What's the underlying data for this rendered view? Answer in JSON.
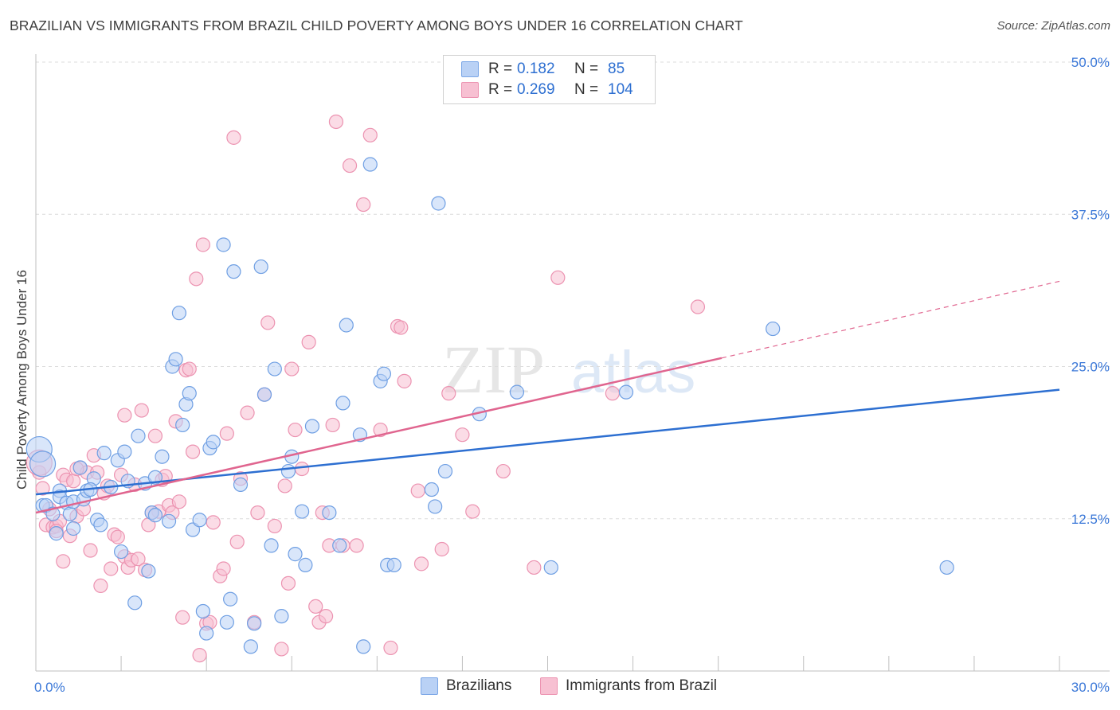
{
  "title": "BRAZILIAN VS IMMIGRANTS FROM BRAZIL CHILD POVERTY AMONG BOYS UNDER 16 CORRELATION CHART",
  "source": "Source: ZipAtlas.com",
  "watermark": {
    "zip": "ZIP",
    "atlas": "atlas"
  },
  "colors": {
    "blue": "#2d6fd1",
    "blue_fill": "#b9d1f5",
    "pink": "#e0658f",
    "pink_fill": "#f7c0d2",
    "grid": "#dcdcdc",
    "label_blue": "#3b78d8"
  },
  "legend_top": [
    {
      "r_label": "R =",
      "r_value": "0.182",
      "n_label": "N =",
      "n_value": "85"
    },
    {
      "r_label": "R =",
      "r_value": "0.269",
      "n_label": "N =",
      "n_value": "104"
    }
  ],
  "legend_bottom": [
    "Brazilians",
    "Immigrants from Brazil"
  ],
  "chart_data": {
    "type": "scatter",
    "title": "BRAZILIAN VS IMMIGRANTS FROM BRAZIL CHILD POVERTY AMONG BOYS UNDER 16 CORRELATION CHART",
    "xlabel": "",
    "ylabel": "Child Poverty Among Boys Under 16",
    "xlim": [
      0,
      30
    ],
    "ylim": [
      0,
      50
    ],
    "x_tick_labels": [
      "0.0%",
      "30.0%"
    ],
    "y_tick_labels": [
      "12.5%",
      "25.0%",
      "37.5%",
      "50.0%"
    ],
    "y_ticks": [
      12.5,
      25.0,
      37.5,
      50.0
    ],
    "grid": true,
    "legend_position": "top-center",
    "series": [
      {
        "name": "Brazilians",
        "r": 0.182,
        "n": 85,
        "trend": {
          "x": [
            0,
            30
          ],
          "y": [
            14.5,
            23.1
          ]
        },
        "points": [
          [
            0.2,
            13.6
          ],
          [
            0.3,
            13.6
          ],
          [
            0.5,
            12.9
          ],
          [
            0.6,
            11.3
          ],
          [
            0.7,
            14.8
          ],
          [
            0.7,
            14.3
          ],
          [
            0.9,
            13.8
          ],
          [
            1.0,
            12.9
          ],
          [
            1.1,
            11.7
          ],
          [
            1.1,
            13.9
          ],
          [
            1.3,
            16.7
          ],
          [
            1.4,
            14.1
          ],
          [
            1.5,
            14.8
          ],
          [
            1.7,
            15.8
          ],
          [
            1.8,
            12.4
          ],
          [
            1.9,
            12.0
          ],
          [
            2.0,
            17.9
          ],
          [
            2.2,
            15.1
          ],
          [
            2.4,
            17.3
          ],
          [
            2.5,
            9.8
          ],
          [
            2.6,
            18.0
          ],
          [
            2.7,
            15.6
          ],
          [
            2.9,
            5.6
          ],
          [
            3.0,
            19.3
          ],
          [
            3.2,
            15.4
          ],
          [
            3.3,
            8.2
          ],
          [
            3.4,
            13.0
          ],
          [
            3.5,
            15.9
          ],
          [
            3.5,
            12.8
          ],
          [
            3.7,
            17.6
          ],
          [
            3.9,
            12.3
          ],
          [
            4.0,
            25.0
          ],
          [
            4.1,
            25.6
          ],
          [
            4.2,
            29.4
          ],
          [
            4.3,
            20.2
          ],
          [
            4.4,
            21.9
          ],
          [
            4.5,
            22.8
          ],
          [
            4.6,
            11.6
          ],
          [
            4.8,
            12.4
          ],
          [
            4.9,
            4.9
          ],
          [
            5.0,
            3.1
          ],
          [
            5.1,
            18.3
          ],
          [
            5.2,
            18.8
          ],
          [
            5.5,
            35.0
          ],
          [
            5.6,
            4.0
          ],
          [
            5.7,
            5.9
          ],
          [
            5.8,
            32.8
          ],
          [
            6.0,
            15.3
          ],
          [
            6.3,
            2.0
          ],
          [
            6.4,
            3.9
          ],
          [
            6.6,
            33.2
          ],
          [
            6.7,
            22.7
          ],
          [
            6.9,
            10.3
          ],
          [
            7.0,
            24.8
          ],
          [
            7.2,
            4.5
          ],
          [
            7.4,
            16.4
          ],
          [
            7.5,
            17.6
          ],
          [
            7.6,
            9.6
          ],
          [
            7.8,
            13.1
          ],
          [
            7.9,
            8.7
          ],
          [
            8.1,
            20.1
          ],
          [
            8.6,
            13.0
          ],
          [
            8.9,
            10.3
          ],
          [
            9.0,
            22.0
          ],
          [
            9.1,
            28.4
          ],
          [
            9.5,
            19.4
          ],
          [
            9.6,
            2.0
          ],
          [
            9.8,
            41.6
          ],
          [
            10.1,
            23.8
          ],
          [
            10.2,
            24.4
          ],
          [
            10.3,
            8.7
          ],
          [
            10.5,
            8.7
          ],
          [
            11.6,
            14.9
          ],
          [
            11.7,
            13.5
          ],
          [
            11.8,
            38.4
          ],
          [
            12.0,
            16.4
          ],
          [
            13.0,
            21.1
          ],
          [
            14.1,
            22.9
          ],
          [
            15.1,
            8.5
          ],
          [
            17.3,
            22.9
          ],
          [
            21.6,
            28.1
          ],
          [
            26.7,
            8.5
          ],
          [
            0.1,
            18.2
          ],
          [
            0.2,
            17.0
          ],
          [
            1.6,
            14.9
          ]
        ]
      },
      {
        "name": "Immigrants from Brazil",
        "r": 0.269,
        "n": 104,
        "trend_solid": {
          "x": [
            0,
            20.1
          ],
          "y": [
            13.0,
            25.7
          ]
        },
        "trend_dashed": {
          "x": [
            20.1,
            30
          ],
          "y": [
            25.7,
            32.0
          ]
        },
        "points": [
          [
            0.1,
            16.3
          ],
          [
            0.2,
            15.0
          ],
          [
            0.3,
            12.0
          ],
          [
            0.4,
            13.3
          ],
          [
            0.5,
            11.8
          ],
          [
            0.6,
            11.9
          ],
          [
            0.7,
            12.3
          ],
          [
            0.8,
            16.1
          ],
          [
            0.8,
            9.0
          ],
          [
            0.9,
            15.7
          ],
          [
            1.0,
            11.1
          ],
          [
            1.1,
            15.6
          ],
          [
            1.2,
            12.7
          ],
          [
            1.3,
            16.7
          ],
          [
            1.4,
            13.3
          ],
          [
            1.5,
            16.3
          ],
          [
            1.6,
            9.9
          ],
          [
            1.7,
            17.7
          ],
          [
            1.8,
            16.3
          ],
          [
            1.9,
            7.0
          ],
          [
            2.0,
            14.6
          ],
          [
            2.1,
            15.2
          ],
          [
            2.2,
            8.4
          ],
          [
            2.3,
            11.2
          ],
          [
            2.4,
            11.0
          ],
          [
            2.5,
            16.1
          ],
          [
            2.6,
            9.4
          ],
          [
            2.6,
            21.0
          ],
          [
            2.7,
            8.5
          ],
          [
            2.8,
            9.1
          ],
          [
            2.9,
            15.3
          ],
          [
            3.0,
            9.2
          ],
          [
            3.1,
            21.4
          ],
          [
            3.2,
            8.3
          ],
          [
            3.3,
            12.0
          ],
          [
            3.5,
            19.3
          ],
          [
            3.6,
            13.1
          ],
          [
            3.7,
            15.7
          ],
          [
            3.8,
            16.0
          ],
          [
            3.9,
            13.6
          ],
          [
            4.0,
            13.0
          ],
          [
            4.1,
            20.5
          ],
          [
            4.2,
            13.9
          ],
          [
            4.3,
            4.4
          ],
          [
            4.4,
            24.7
          ],
          [
            4.5,
            24.8
          ],
          [
            4.6,
            18.0
          ],
          [
            4.7,
            32.2
          ],
          [
            4.8,
            1.3
          ],
          [
            4.9,
            35.0
          ],
          [
            5.0,
            3.9
          ],
          [
            5.1,
            4.0
          ],
          [
            5.2,
            12.2
          ],
          [
            5.4,
            7.8
          ],
          [
            5.5,
            8.4
          ],
          [
            5.6,
            19.5
          ],
          [
            5.8,
            43.8
          ],
          [
            5.9,
            10.6
          ],
          [
            6.0,
            15.8
          ],
          [
            6.2,
            21.2
          ],
          [
            6.4,
            4.0
          ],
          [
            6.5,
            13.0
          ],
          [
            6.7,
            22.7
          ],
          [
            6.8,
            28.6
          ],
          [
            7.0,
            11.9
          ],
          [
            7.2,
            1.8
          ],
          [
            7.3,
            15.2
          ],
          [
            7.4,
            7.2
          ],
          [
            7.5,
            24.8
          ],
          [
            7.6,
            19.8
          ],
          [
            7.8,
            16.6
          ],
          [
            8.0,
            27.0
          ],
          [
            8.2,
            5.3
          ],
          [
            8.3,
            4.0
          ],
          [
            8.4,
            13.0
          ],
          [
            8.5,
            4.5
          ],
          [
            8.6,
            10.3
          ],
          [
            8.7,
            20.2
          ],
          [
            8.8,
            45.1
          ],
          [
            9.0,
            10.3
          ],
          [
            9.2,
            41.5
          ],
          [
            9.4,
            10.3
          ],
          [
            9.6,
            38.3
          ],
          [
            9.8,
            44.0
          ],
          [
            10.1,
            19.8
          ],
          [
            10.4,
            1.9
          ],
          [
            10.6,
            28.3
          ],
          [
            10.7,
            28.2
          ],
          [
            10.8,
            23.8
          ],
          [
            11.2,
            14.8
          ],
          [
            11.3,
            8.8
          ],
          [
            11.9,
            10.0
          ],
          [
            12.1,
            22.8
          ],
          [
            12.5,
            19.4
          ],
          [
            12.8,
            13.1
          ],
          [
            13.7,
            16.4
          ],
          [
            14.6,
            8.5
          ],
          [
            15.3,
            32.3
          ],
          [
            16.9,
            22.8
          ],
          [
            19.4,
            29.9
          ],
          [
            0.1,
            17.1
          ],
          [
            0.6,
            11.5
          ],
          [
            1.2,
            16.6
          ],
          [
            3.4,
            13.0
          ]
        ]
      }
    ]
  }
}
